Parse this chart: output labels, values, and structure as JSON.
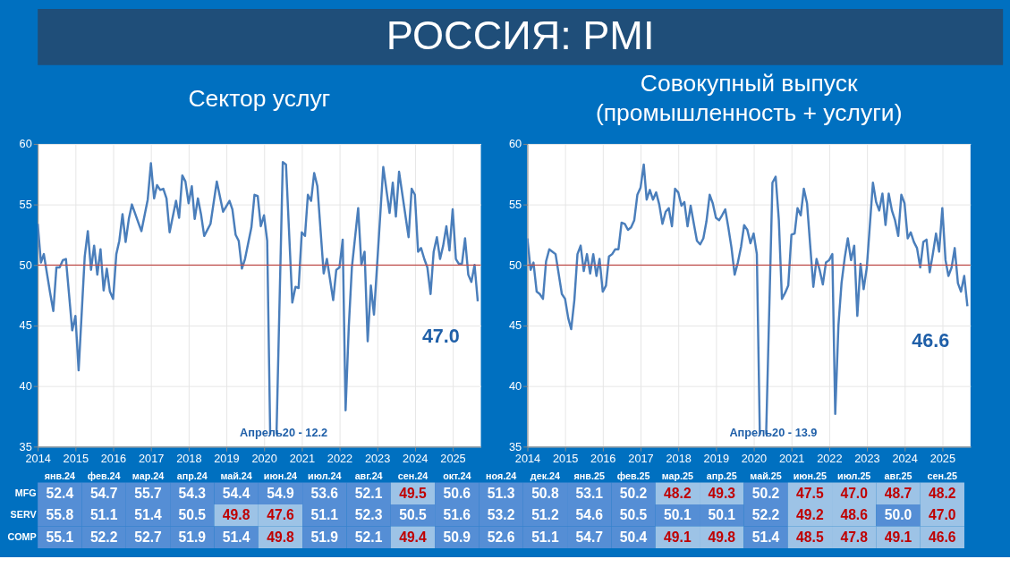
{
  "chart_data": [
    {
      "type": "other",
      "title": "РОССИЯ: PMI"
    },
    {
      "type": "line",
      "title": "Сектор услуг",
      "x": [
        "2014-01",
        "2014-02",
        "2014-03",
        "2014-05",
        "2014-06",
        "2014-07",
        "2014-08",
        "2014-09",
        "2014-10",
        "2014-12",
        "2015-01",
        "2015-02",
        "2015-04",
        "2015-05",
        "2015-06",
        "2015-07",
        "2015-08",
        "2015-09",
        "2015-10",
        "2015-11",
        "2015-12",
        "2016-01",
        "2016-02",
        "2016-03",
        "2016-04",
        "2016-05",
        "2016-06",
        "2016-07",
        "2016-09",
        "2016-10",
        "2016-12",
        "2017-01",
        "2017-02",
        "2017-03",
        "2017-04",
        "2017-05",
        "2017-06",
        "2017-07",
        "2017-09",
        "2017-10",
        "2017-11",
        "2017-12",
        "2018-01",
        "2018-02",
        "2018-03",
        "2018-04",
        "2018-05",
        "2018-06",
        "2018-08",
        "2018-10",
        "2018-12",
        "2019-02",
        "2019-03",
        "2019-04",
        "2019-05",
        "2019-06",
        "2019-07",
        "2019-09",
        "2019-10",
        "2019-11",
        "2019-12",
        "2020-01",
        "2020-02",
        "2020-03",
        "2020-04",
        "2020-05",
        "2020-07",
        "2020-08",
        "2020-10",
        "2020-11",
        "2020-12",
        "2021-01",
        "2021-02",
        "2021-03",
        "2021-04",
        "2021-05",
        "2021-06",
        "2021-08",
        "2021-09",
        "2021-11",
        "2021-12",
        "2022-01",
        "2022-02",
        "2022-03",
        "2022-04",
        "2022-05",
        "2022-07",
        "2022-08",
        "2022-09",
        "2022-10",
        "2022-11",
        "2022-12",
        "2023-03",
        "2023-05",
        "2023-06",
        "2023-07",
        "2023-08",
        "2023-11",
        "2023-12",
        "2024-01",
        "2024-02",
        "2024-03",
        "2024-04",
        "2024-05",
        "2024-06",
        "2024-07",
        "2024-08",
        "2024-09",
        "2024-10",
        "2024-11",
        "2024-12",
        "2025-01",
        "2025-02",
        "2025-03",
        "2025-04",
        "2025-05",
        "2025-06",
        "2025-07",
        "2025-08",
        "2025-09"
      ],
      "series": [
        {
          "color": "#4a7ebb",
          "values": [
            53.4,
            50.2,
            50.9,
            47.7,
            46.2,
            49.8,
            49.8,
            50.4,
            50.5,
            44.6,
            45.8,
            41.3,
            50.7,
            52.8,
            49.6,
            51.6,
            49.2,
            51.3,
            47.9,
            49.7,
            47.8,
            47.2,
            50.9,
            52.0,
            54.2,
            51.9,
            53.8,
            55.0,
            53.5,
            52.8,
            55.4,
            58.4,
            55.5,
            56.6,
            56.2,
            56.3,
            55.5,
            52.7,
            55.3,
            53.9,
            57.4,
            56.9,
            55.1,
            56.5,
            53.8,
            55.5,
            54.2,
            52.4,
            53.4,
            56.9,
            54.4,
            55.3,
            54.6,
            52.5,
            52.0,
            49.7,
            50.5,
            53.1,
            55.8,
            55.7,
            53.2,
            54.1,
            52.0,
            36.0,
            null,
            36.0,
            58.5,
            58.3,
            46.9,
            48.2,
            48.1,
            52.7,
            52.4,
            55.8,
            55.3,
            57.6,
            56.5,
            49.3,
            50.5,
            47.1,
            49.6,
            49.8,
            52.1,
            38.0,
            44.9,
            49.8,
            54.7,
            50.0,
            51.1,
            43.7,
            48.3,
            45.9,
            58.1,
            54.3,
            56.8,
            54.0,
            57.7,
            52.3,
            56.3,
            55.8,
            51.1,
            51.4,
            50.5,
            49.8,
            47.6,
            51.1,
            52.3,
            50.5,
            51.6,
            53.2,
            51.2,
            54.6,
            50.5,
            50.1,
            50.1,
            52.2,
            49.2,
            48.6,
            50.0,
            47.0
          ]
        }
      ],
      "xlim": [
        "2014-01",
        "2025-10"
      ],
      "xticks": [
        "2014",
        "2015",
        "2016",
        "2017",
        "2018",
        "2019",
        "2020",
        "2021",
        "2022",
        "2023",
        "2024",
        "2025"
      ],
      "ylim": [
        35,
        60
      ],
      "yticks": [
        35,
        40,
        45,
        50,
        55,
        60
      ],
      "grid": true,
      "ref_lines": [
        {
          "axis": "y",
          "value": 50,
          "color": "#c0504d"
        }
      ],
      "annotations": [
        "Апрель20 - 12.2",
        {
          "text": "47.0",
          "x": "2025-09",
          "y": 47.0
        }
      ]
    },
    {
      "type": "line",
      "title": "Совокупный выпуск (промышленность + услуги)",
      "x": [
        "2014-01",
        "2014-02",
        "2014-03",
        "2014-04",
        "2014-05",
        "2014-06",
        "2014-07",
        "2014-08",
        "2014-09",
        "2014-10",
        "2014-12",
        "2015-01",
        "2015-02",
        "2015-03",
        "2015-04",
        "2015-05",
        "2015-06",
        "2015-07",
        "2015-08",
        "2015-09",
        "2015-10",
        "2015-11",
        "2015-12",
        "2016-01",
        "2016-02",
        "2016-03",
        "2016-04",
        "2016-05",
        "2016-06",
        "2016-07",
        "2016-08",
        "2016-09",
        "2016-10",
        "2016-11",
        "2016-12",
        "2017-01",
        "2017-02",
        "2017-03",
        "2017-04",
        "2017-05",
        "2017-06",
        "2017-07",
        "2017-08",
        "2017-09",
        "2017-10",
        "2017-11",
        "2017-12",
        "2018-01",
        "2018-02",
        "2018-03",
        "2018-04",
        "2018-05",
        "2018-06",
        "2018-07",
        "2018-08",
        "2018-09",
        "2018-10",
        "2018-11",
        "2018-12",
        "2019-01",
        "2019-02",
        "2019-03",
        "2019-04",
        "2019-05",
        "2019-06",
        "2019-07",
        "2019-08",
        "2019-09",
        "2019-10",
        "2019-11",
        "2019-12",
        "2020-01",
        "2020-02",
        "2020-03",
        "2020-04",
        "2020-05",
        "2020-07",
        "2020-08",
        "2020-09",
        "2020-10",
        "2020-11",
        "2020-12",
        "2021-01",
        "2021-02",
        "2021-03",
        "2021-04",
        "2021-05",
        "2021-06",
        "2021-07",
        "2021-08",
        "2021-09",
        "2021-10",
        "2021-11",
        "2021-12",
        "2022-01",
        "2022-02",
        "2022-03",
        "2022-04",
        "2022-05",
        "2022-06",
        "2022-07",
        "2022-08",
        "2022-09",
        "2022-10",
        "2022-11",
        "2022-12",
        "2023-01",
        "2023-03",
        "2023-04",
        "2023-05",
        "2023-06",
        "2023-07",
        "2023-08",
        "2023-09",
        "2023-10",
        "2023-11",
        "2023-12",
        "2024-01",
        "2024-02",
        "2024-03",
        "2024-04",
        "2024-05",
        "2024-06",
        "2024-07",
        "2024-08",
        "2024-09",
        "2024-10",
        "2024-11",
        "2024-12",
        "2025-01",
        "2025-02",
        "2025-03",
        "2025-04",
        "2025-05",
        "2025-06",
        "2025-07",
        "2025-08",
        "2025-09"
      ],
      "series": [
        {
          "color": "#4a7ebb",
          "values": [
            52.2,
            49.6,
            50.2,
            47.8,
            47.6,
            47.2,
            50.3,
            51.3,
            51.1,
            50.9,
            47.6,
            47.2,
            45.6,
            44.7,
            47.1,
            50.9,
            51.6,
            49.5,
            50.9,
            49.3,
            50.9,
            49.1,
            50.5,
            47.8,
            48.3,
            50.7,
            50.9,
            51.3,
            51.3,
            53.5,
            53.4,
            52.9,
            53.1,
            53.7,
            55.8,
            56.4,
            58.3,
            55.4,
            56.2,
            55.4,
            56.0,
            55.0,
            53.4,
            54.4,
            54.7,
            53.2,
            56.3,
            56.0,
            54.9,
            55.2,
            53.2,
            54.9,
            53.4,
            52.0,
            51.7,
            52.2,
            53.6,
            55.8,
            55.1,
            53.9,
            53.7,
            54.1,
            54.6,
            53.1,
            51.4,
            49.2,
            50.2,
            51.5,
            53.3,
            52.9,
            51.8,
            52.6,
            50.9,
            36.0,
            null,
            36.0,
            56.8,
            57.3,
            53.7,
            47.2,
            47.7,
            48.3,
            52.5,
            52.6,
            54.7,
            54.1,
            56.3,
            55.1,
            51.7,
            48.2,
            50.5,
            49.6,
            48.4,
            50.2,
            50.4,
            50.9,
            37.7,
            45.0,
            48.5,
            50.6,
            52.2,
            50.4,
            51.6,
            45.8,
            50.1,
            48.0,
            49.8,
            56.8,
            55.2,
            54.5,
            55.9,
            53.3,
            55.9,
            54.5,
            53.7,
            52.4,
            55.8,
            55.1,
            52.2,
            52.7,
            51.9,
            51.4,
            49.8,
            51.9,
            52.1,
            49.4,
            50.9,
            52.6,
            51.1,
            54.7,
            50.4,
            49.1,
            49.8,
            51.4,
            48.5,
            47.8,
            49.1,
            46.6
          ]
        }
      ],
      "xlim": [
        "2014-01",
        "2025-10"
      ],
      "xticks": [
        "2014",
        "2015",
        "2016",
        "2017",
        "2018",
        "2019",
        "2020",
        "2021",
        "2022",
        "2023",
        "2024",
        "2025"
      ],
      "ylim": [
        35,
        60
      ],
      "yticks": [
        35,
        40,
        45,
        50,
        55,
        60
      ],
      "grid": true,
      "ref_lines": [
        {
          "axis": "y",
          "value": 50,
          "color": "#c0504d"
        }
      ],
      "annotations": [
        "Апрель20 - 13.9",
        {
          "text": "46.6",
          "x": "2025-09",
          "y": 46.6
        }
      ]
    },
    {
      "type": "heatmap",
      "categories": [
        "янв.24",
        "фев.24",
        "мар.24",
        "апр.24",
        "май.24",
        "июн.24",
        "июл.24",
        "авг.24",
        "сен.24",
        "окт.24",
        "ноя.24",
        "дек.24",
        "янв.25",
        "фев.25",
        "мар.25",
        "апр.25",
        "май.25",
        "июн.25",
        "июл.25",
        "авг.25",
        "сен.25"
      ],
      "y_categories": [
        "MFG",
        "SERV",
        "COMP"
      ],
      "cells": [
        [
          52.4,
          54.7,
          55.7,
          54.3,
          54.4,
          54.9,
          53.6,
          52.1,
          49.5,
          50.6,
          51.3,
          50.8,
          53.1,
          50.2,
          48.2,
          49.3,
          50.2,
          47.5,
          47.0,
          48.7,
          48.2
        ],
        [
          55.8,
          51.1,
          51.4,
          50.5,
          49.8,
          47.6,
          51.1,
          52.3,
          50.5,
          51.6,
          53.2,
          51.2,
          54.6,
          50.5,
          50.1,
          50.1,
          52.2,
          49.2,
          48.6,
          50.0,
          47.0
        ],
        [
          55.1,
          52.2,
          52.7,
          51.9,
          51.4,
          49.8,
          51.9,
          52.1,
          49.4,
          50.9,
          52.6,
          51.1,
          54.7,
          50.4,
          49.1,
          49.8,
          51.4,
          48.5,
          47.8,
          49.1,
          46.6
        ]
      ],
      "cell_labels": [
        [
          "52.4",
          "54.7",
          "55.7",
          "54.3",
          "54.4",
          "54.9",
          "53.6",
          "52.1",
          "49.5",
          "50.6",
          "51.3",
          "50.8",
          "53.1",
          "50.2",
          "48.2",
          "49.3",
          "50.2",
          "47.5",
          "47.0",
          "48.7",
          "48.2"
        ],
        [
          "55.8",
          "51.1",
          "51.4",
          "50.5",
          "49.8",
          "47.6",
          "51.1",
          "52.3",
          "50.5",
          "51.6",
          "53.2",
          "51.2",
          "54.6",
          "50.5",
          "50.1",
          "50.1",
          "52.2",
          "49.2",
          "48.6",
          "50.0",
          "47.0"
        ],
        [
          "55.1",
          "52.2",
          "52.7",
          "51.9",
          "51.4",
          "49.8",
          "51.9",
          "52.1",
          "49.4",
          "50.9",
          "52.6",
          "51.1",
          "54.7",
          "50.4",
          "49.1",
          "49.8",
          "51.4",
          "48.5",
          "47.8",
          "49.1",
          "46.6"
        ]
      ],
      "color": "#558ed5"
    }
  ]
}
